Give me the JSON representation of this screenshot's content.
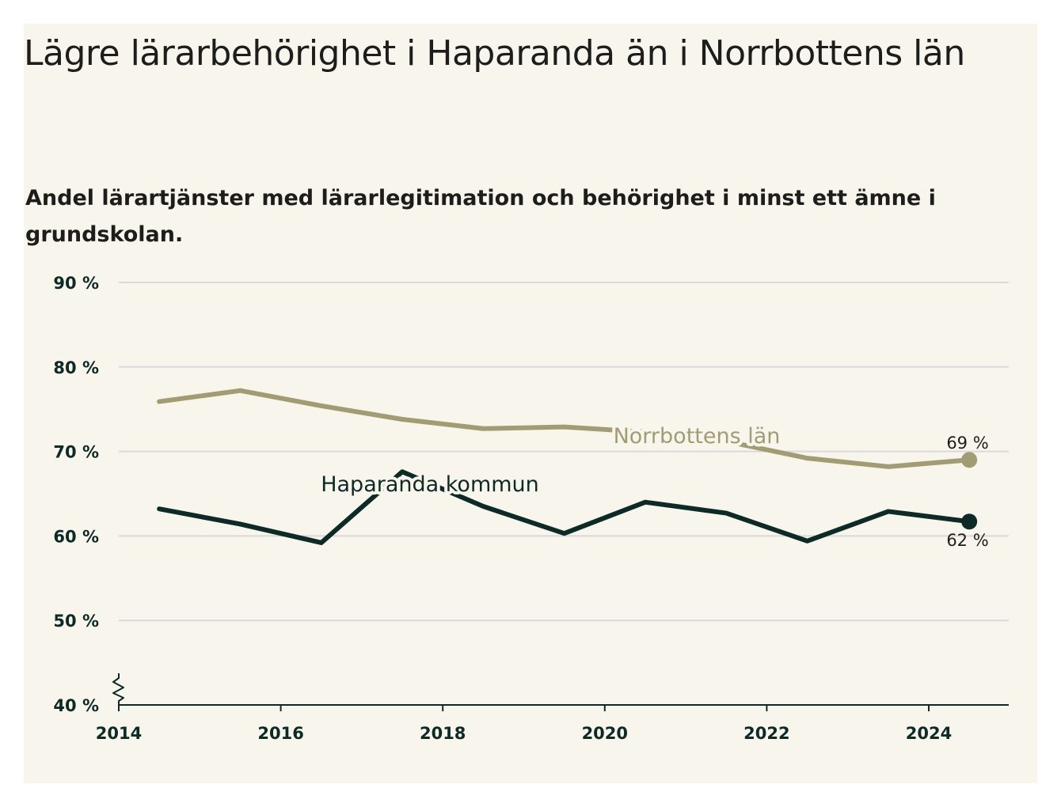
{
  "title": "Lägre lärarbehörighet i Haparanda än i Norrbottens län",
  "subtitle": "Andel lärartjänster med lärarlegitimation och behörighet i minst ett ämne i grundskolan.",
  "colors": {
    "background": "#f7f5ec",
    "county": "#a29c75",
    "municipality": "#0d2a26",
    "grid": "#d9d9d9",
    "axis_text": "#0d2a26"
  },
  "chart_data": {
    "type": "line",
    "y_tick_labels": [
      "40 %",
      "50 %",
      "60 %",
      "70 %",
      "80 %",
      "90 %"
    ],
    "y_ticks": [
      40,
      50,
      60,
      70,
      80,
      90
    ],
    "x_tick_labels": [
      "2014",
      "2016",
      "2018",
      "2020",
      "2022",
      "2024"
    ],
    "x_ticks": [
      2014,
      2016,
      2018,
      2020,
      2022,
      2024
    ],
    "ylim": [
      40,
      90
    ],
    "xlim": [
      2014,
      2025
    ],
    "grid": true,
    "y_axis_break": true,
    "series": [
      {
        "name": "Norrbottens län",
        "color": "#a29c75",
        "x": [
          2014.5,
          2015.5,
          2016.5,
          2017.5,
          2018.5,
          2019.5,
          2020.5,
          2021.5,
          2022.5,
          2023.5,
          2024.5
        ],
        "values": [
          75.9,
          77.2,
          75.4,
          73.8,
          72.7,
          72.9,
          72.3,
          71.2,
          69.2,
          68.2,
          69.0
        ],
        "end_label": "69 %"
      },
      {
        "name": "Haparanda kommun",
        "color": "#0d2a26",
        "x": [
          2014.5,
          2015.5,
          2016.5,
          2017.5,
          2018.5,
          2019.5,
          2020.5,
          2021.5,
          2022.5,
          2023.5,
          2024.5
        ],
        "values": [
          63.2,
          61.4,
          59.2,
          67.6,
          63.5,
          60.3,
          64.0,
          62.7,
          59.4,
          62.9,
          61.7
        ],
        "end_label": "62 %"
      }
    ]
  }
}
